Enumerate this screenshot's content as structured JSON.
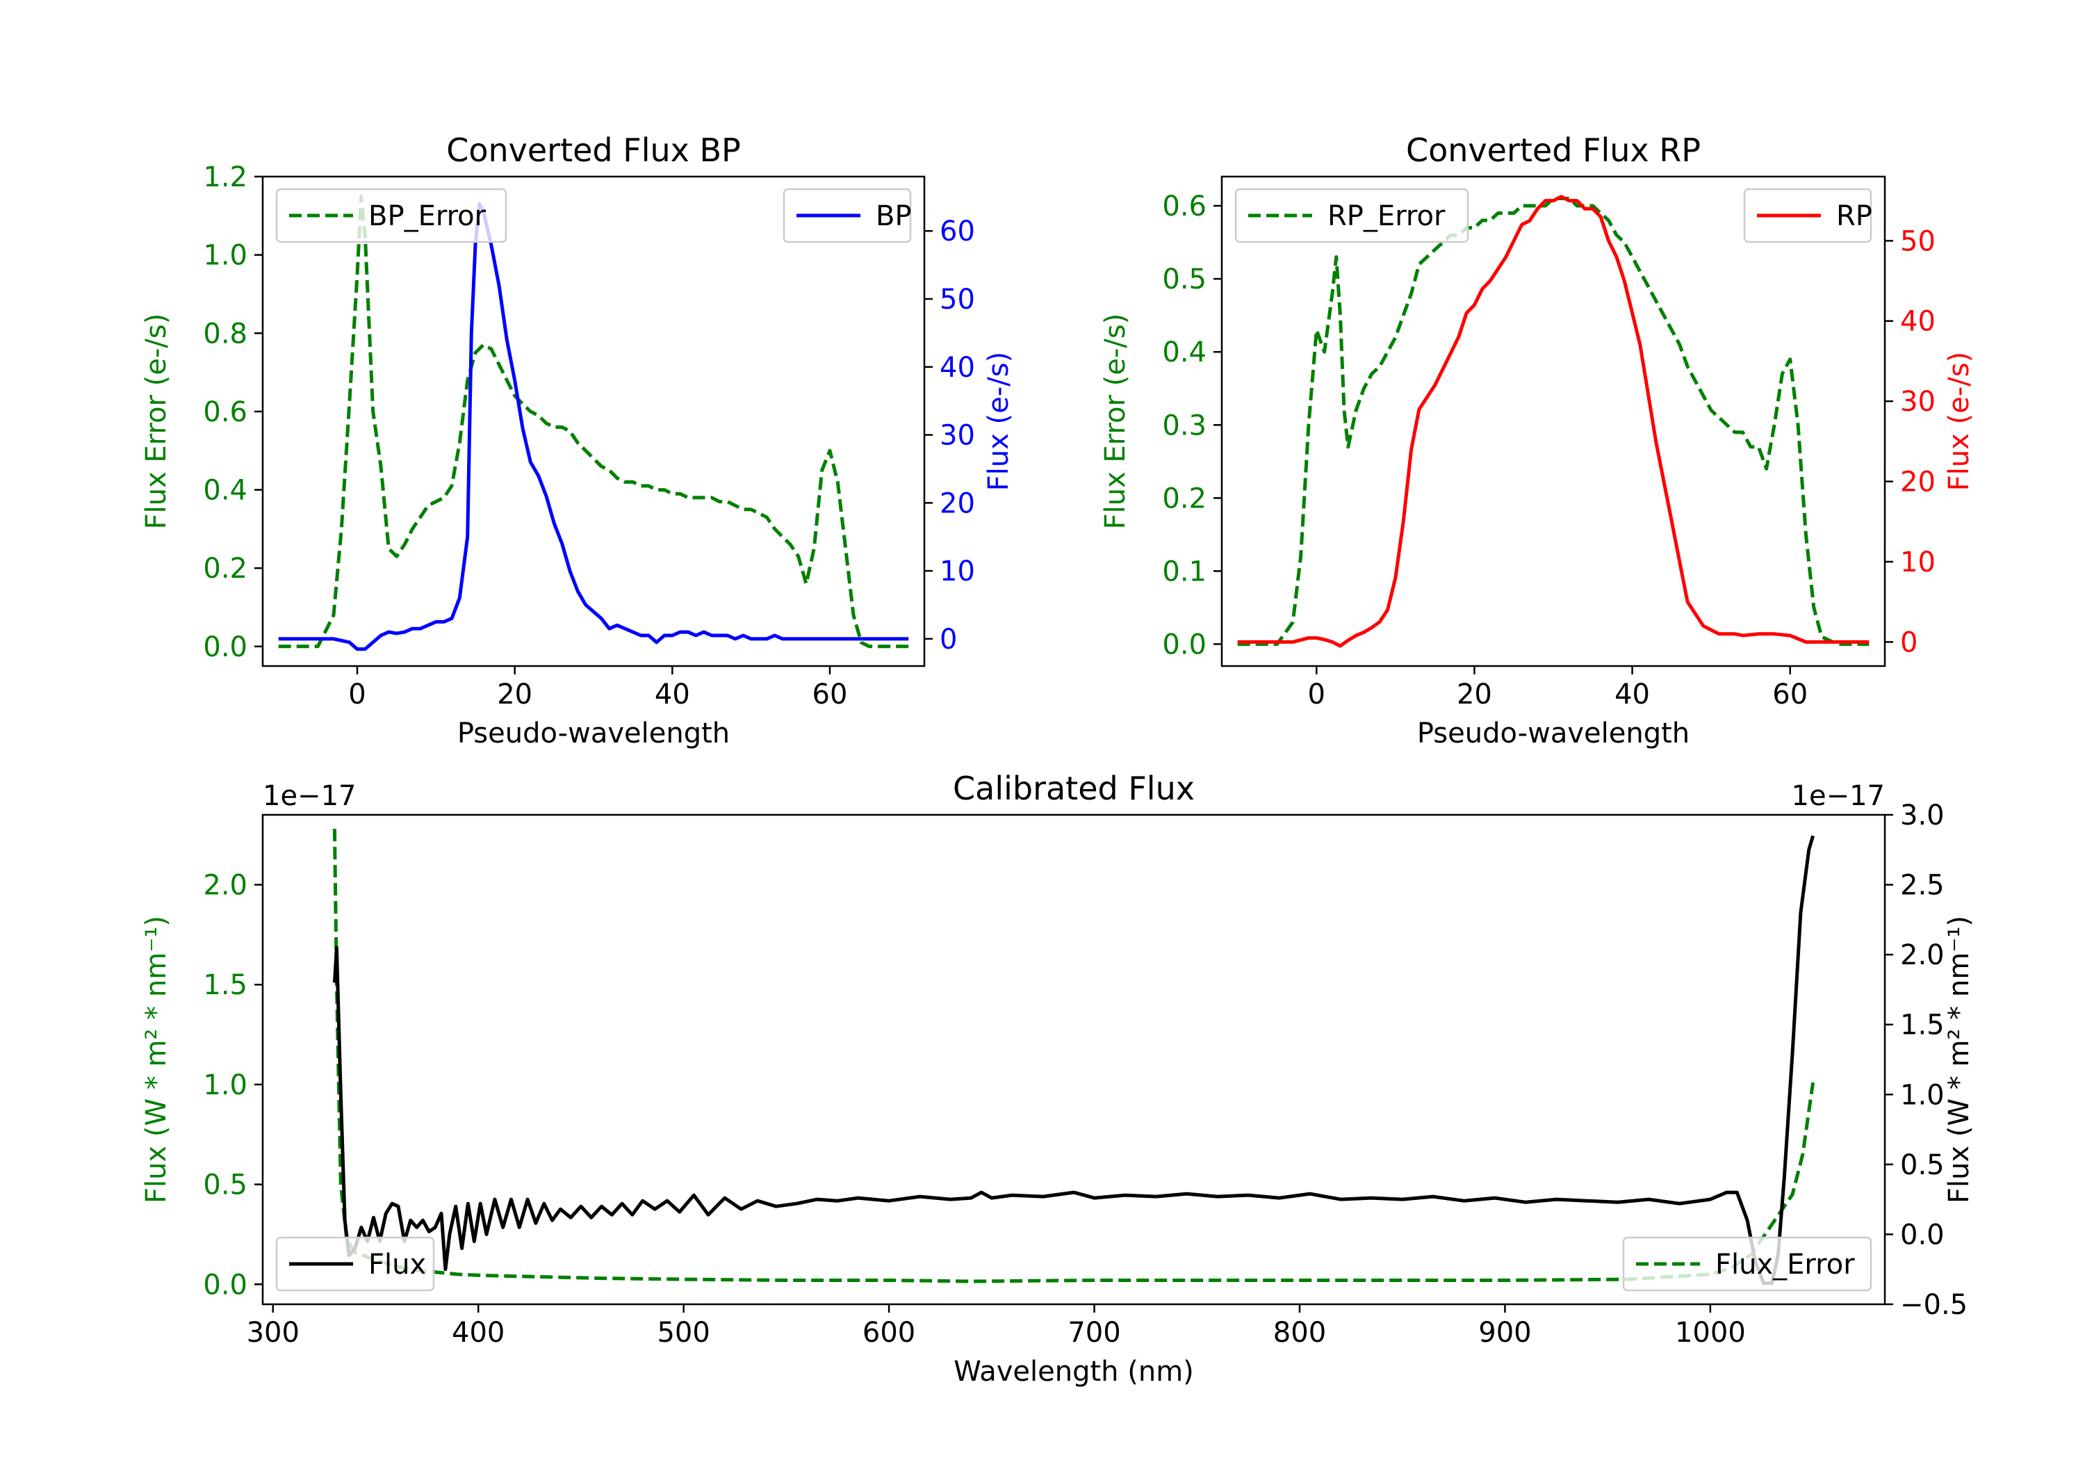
{
  "colors": {
    "green": "#008000",
    "blue": "#0000ff",
    "red": "#ff0000",
    "black": "#000000"
  },
  "chart_data": [
    {
      "type": "line",
      "title": "Converted Flux BP",
      "xlabel": "Pseudo-wavelength",
      "ylabel_left": "Flux Error (e-/s)",
      "ylabel_right": "Flux (e-/s)",
      "xlim": [
        -12,
        72
      ],
      "ylim_left": [
        -0.05,
        1.2
      ],
      "ylim_right": [
        -4,
        68
      ],
      "xticks": [
        0,
        20,
        40,
        60
      ],
      "yticks_left": [
        0.0,
        0.2,
        0.4,
        0.6,
        0.8,
        1.0,
        1.2
      ],
      "yticks_right": [
        0,
        10,
        20,
        30,
        40,
        50,
        60
      ],
      "xtick_labels": [
        "0",
        "20",
        "40",
        "60"
      ],
      "ytick_labels_left": [
        "0.0",
        "0.2",
        "0.4",
        "0.6",
        "0.8",
        "1.0",
        "1.2"
      ],
      "ytick_labels_right": [
        "0",
        "10",
        "20",
        "30",
        "40",
        "50",
        "60"
      ],
      "legend_left": "BP_Error",
      "legend_right": "BP",
      "series": [
        {
          "name": "BP_Error",
          "axis": "left",
          "style": "dashed",
          "color": "#008000",
          "x": [
            -10,
            -5,
            -3,
            -2,
            -1,
            0,
            0.5,
            1,
            2,
            3,
            4,
            5,
            6,
            7,
            8,
            9,
            10,
            11,
            12,
            13,
            14,
            15,
            16,
            17,
            18,
            19,
            20,
            21,
            22,
            23,
            24,
            25,
            26,
            27,
            28,
            29,
            30,
            31,
            32,
            33,
            34,
            35,
            36,
            37,
            38,
            39,
            40,
            41,
            42,
            43,
            44,
            45,
            46,
            47,
            48,
            49,
            50,
            51,
            52,
            53,
            54,
            55,
            56,
            57,
            58,
            59,
            60,
            61,
            62,
            63,
            64,
            65,
            66,
            67,
            68,
            69,
            70
          ],
          "y": [
            0.0,
            0.0,
            0.08,
            0.3,
            0.62,
            0.95,
            1.15,
            1.05,
            0.6,
            0.46,
            0.25,
            0.23,
            0.26,
            0.3,
            0.33,
            0.36,
            0.37,
            0.38,
            0.41,
            0.52,
            0.68,
            0.75,
            0.77,
            0.76,
            0.72,
            0.68,
            0.64,
            0.62,
            0.6,
            0.59,
            0.57,
            0.56,
            0.56,
            0.55,
            0.52,
            0.5,
            0.48,
            0.46,
            0.45,
            0.43,
            0.42,
            0.42,
            0.41,
            0.41,
            0.4,
            0.4,
            0.39,
            0.39,
            0.38,
            0.38,
            0.38,
            0.38,
            0.37,
            0.37,
            0.36,
            0.35,
            0.35,
            0.34,
            0.33,
            0.3,
            0.28,
            0.26,
            0.23,
            0.16,
            0.25,
            0.45,
            0.5,
            0.42,
            0.25,
            0.08,
            0.01,
            0.0,
            0.0,
            0.0,
            0.0,
            0.0,
            0.0
          ]
        },
        {
          "name": "BP",
          "axis": "right",
          "style": "solid",
          "color": "#0000ff",
          "x": [
            -10,
            -5,
            -3,
            -1,
            0,
            1,
            2,
            3,
            4,
            5,
            6,
            7,
            8,
            9,
            10,
            11,
            12,
            13,
            14,
            14.5,
            15,
            15.5,
            16,
            17,
            18,
            19,
            20,
            21,
            22,
            23,
            24,
            25,
            26,
            27,
            28,
            29,
            30,
            31,
            32,
            33,
            34,
            35,
            36,
            37,
            38,
            39,
            40,
            41,
            42,
            43,
            44,
            45,
            46,
            47,
            48,
            49,
            50,
            51,
            52,
            53,
            54,
            55,
            56,
            57,
            58,
            60,
            62,
            64,
            66,
            68,
            70
          ],
          "y": [
            0,
            0,
            0,
            -0.5,
            -1.5,
            -1.5,
            -0.5,
            0.5,
            1,
            0.8,
            1,
            1.5,
            1.5,
            2,
            2.5,
            2.5,
            3,
            6,
            15,
            45,
            58,
            64,
            63,
            58,
            52,
            44,
            38,
            31,
            26,
            24,
            21,
            17,
            14,
            10,
            7,
            5,
            4,
            3,
            1.5,
            2,
            1.5,
            1,
            0.5,
            0.5,
            -0.5,
            0.5,
            0.5,
            1,
            1,
            0.5,
            1,
            0.5,
            0.5,
            0.5,
            0,
            0.5,
            0,
            0,
            0,
            0.5,
            0,
            0,
            0,
            0,
            0,
            0,
            0,
            0,
            0,
            0,
            0
          ]
        }
      ]
    },
    {
      "type": "line",
      "title": "Converted Flux RP",
      "xlabel": "Pseudo-wavelength",
      "ylabel_left": "Flux Error (e-/s)",
      "ylabel_right": "Flux (e-/s)",
      "xlim": [
        -12,
        72
      ],
      "ylim_left": [
        -0.03,
        0.64
      ],
      "ylim_right": [
        -3,
        58
      ],
      "xticks": [
        0,
        20,
        40,
        60
      ],
      "yticks_left": [
        0.0,
        0.1,
        0.2,
        0.3,
        0.4,
        0.5,
        0.6
      ],
      "yticks_right": [
        0,
        10,
        20,
        30,
        40,
        50
      ],
      "xtick_labels": [
        "0",
        "20",
        "40",
        "60"
      ],
      "ytick_labels_left": [
        "0.0",
        "0.1",
        "0.2",
        "0.3",
        "0.4",
        "0.5",
        "0.6"
      ],
      "ytick_labels_right": [
        "0",
        "10",
        "20",
        "30",
        "40",
        "50"
      ],
      "legend_left": "RP_Error",
      "legend_right": "RP",
      "series": [
        {
          "name": "RP_Error",
          "axis": "left",
          "style": "dashed",
          "color": "#008000",
          "x": [
            -10,
            -5,
            -3,
            -2,
            -1,
            0,
            1,
            2,
            2.5,
            3,
            3.5,
            4,
            5,
            6,
            7,
            8,
            9,
            10,
            11,
            12,
            13,
            14,
            15,
            16,
            17,
            18,
            19,
            20,
            21,
            22,
            23,
            24,
            25,
            26,
            27,
            28,
            29,
            30,
            31,
            32,
            33,
            34,
            35,
            36,
            37,
            38,
            39,
            40,
            41,
            42,
            43,
            44,
            45,
            46,
            47,
            48,
            49,
            50,
            51,
            52,
            53,
            54,
            55,
            56,
            57,
            58,
            59,
            60,
            61,
            62,
            63,
            64,
            66,
            68,
            70
          ],
          "y": [
            0.0,
            0.0,
            0.03,
            0.12,
            0.3,
            0.43,
            0.4,
            0.48,
            0.53,
            0.45,
            0.32,
            0.27,
            0.32,
            0.35,
            0.37,
            0.38,
            0.4,
            0.42,
            0.45,
            0.48,
            0.52,
            0.53,
            0.54,
            0.55,
            0.56,
            0.56,
            0.57,
            0.57,
            0.58,
            0.58,
            0.59,
            0.59,
            0.59,
            0.6,
            0.6,
            0.6,
            0.6,
            0.61,
            0.61,
            0.61,
            0.6,
            0.6,
            0.6,
            0.59,
            0.58,
            0.56,
            0.55,
            0.53,
            0.51,
            0.49,
            0.47,
            0.45,
            0.43,
            0.41,
            0.38,
            0.36,
            0.34,
            0.32,
            0.31,
            0.3,
            0.29,
            0.29,
            0.27,
            0.27,
            0.24,
            0.3,
            0.37,
            0.39,
            0.3,
            0.15,
            0.05,
            0.01,
            0.0,
            0.0,
            0.0
          ]
        },
        {
          "name": "RP",
          "axis": "right",
          "style": "solid",
          "color": "#ff0000",
          "x": [
            -10,
            -5,
            -3,
            -1,
            0,
            1,
            2,
            3,
            4,
            5,
            6,
            7,
            8,
            9,
            10,
            11,
            12,
            13,
            14,
            15,
            16,
            17,
            18,
            19,
            20,
            21,
            22,
            23,
            24,
            25,
            26,
            27,
            28,
            29,
            30,
            31,
            32,
            33,
            34,
            35,
            36,
            37,
            38,
            39,
            40,
            41,
            42,
            43,
            44,
            45,
            46,
            47,
            48,
            49,
            50,
            51,
            52,
            53,
            54,
            56,
            58,
            60,
            62,
            64,
            66,
            68,
            70
          ],
          "y": [
            0,
            0,
            0,
            0.5,
            0.5,
            0.3,
            0,
            -0.5,
            0.2,
            0.8,
            1.2,
            1.8,
            2.5,
            4,
            8,
            15,
            24,
            29,
            30.5,
            32,
            34,
            36,
            38,
            41,
            42,
            44,
            45,
            46.5,
            48,
            50,
            52,
            52.5,
            54,
            55,
            55,
            55.5,
            55,
            55,
            54,
            54,
            53,
            50,
            48,
            45,
            41,
            37,
            31,
            25,
            20,
            15,
            10,
            5,
            3.5,
            2,
            1.5,
            1,
            1,
            1,
            0.8,
            1,
            1,
            0.8,
            0,
            0,
            0,
            0,
            0
          ]
        }
      ]
    },
    {
      "type": "line",
      "title": "Calibrated Flux",
      "xlabel": "Wavelength (nm)",
      "ylabel_left": "Flux (W * m² * nm⁻¹)",
      "ylabel_right": "Flux (W * m² * nm⁻¹)",
      "offset_left": "1e−17",
      "offset_right": "1e−17",
      "xlim": [
        295,
        1085
      ],
      "ylim_left": [
        -0.1,
        2.35
      ],
      "ylim_right": [
        -0.5,
        3.0
      ],
      "xticks": [
        300,
        400,
        500,
        600,
        700,
        800,
        900,
        1000
      ],
      "yticks_left": [
        0.0,
        0.5,
        1.0,
        1.5,
        2.0
      ],
      "yticks_right": [
        -0.5,
        0.0,
        0.5,
        1.0,
        1.5,
        2.0,
        2.5,
        3.0
      ],
      "xtick_labels": [
        "300",
        "400",
        "500",
        "600",
        "700",
        "800",
        "900",
        "1000"
      ],
      "ytick_labels_left": [
        "0.0",
        "0.5",
        "1.0",
        "1.5",
        "2.0"
      ],
      "ytick_labels_right": [
        "−0.5",
        "0.0",
        "0.5",
        "1.0",
        "1.5",
        "2.0",
        "2.5",
        "3.0"
      ],
      "legend_left": "Flux",
      "legend_right": "Flux_Error",
      "series": [
        {
          "name": "Flux_Error",
          "axis": "left",
          "style": "dashed",
          "color": "#008000",
          "x": [
            330,
            331,
            333,
            336,
            340,
            345,
            350,
            360,
            370,
            380,
            390,
            400,
            420,
            440,
            460,
            500,
            550,
            600,
            640,
            700,
            800,
            900,
            960,
            1000,
            1010,
            1020,
            1030,
            1040,
            1045,
            1050
          ],
          "y": [
            2.28,
            1.5,
            0.5,
            0.22,
            0.16,
            0.14,
            0.12,
            0.09,
            0.07,
            0.06,
            0.05,
            0.045,
            0.04,
            0.035,
            0.03,
            0.025,
            0.02,
            0.02,
            0.015,
            0.02,
            0.02,
            0.02,
            0.025,
            0.05,
            0.08,
            0.15,
            0.3,
            0.45,
            0.65,
            1.01
          ]
        },
        {
          "name": "Flux",
          "axis": "right",
          "style": "solid",
          "color": "#000000",
          "x": [
            330,
            331,
            333,
            335,
            337,
            340,
            343,
            346,
            349,
            352,
            355,
            358,
            361,
            364,
            367,
            370,
            373,
            376,
            379,
            382,
            384,
            386,
            389,
            392,
            395,
            398,
            401,
            404,
            408,
            412,
            416,
            420,
            424,
            428,
            432,
            436,
            440,
            445,
            450,
            455,
            460,
            465,
            470,
            475,
            480,
            486,
            492,
            498,
            505,
            512,
            520,
            528,
            536,
            545,
            555,
            565,
            575,
            585,
            600,
            615,
            630,
            640,
            645,
            650,
            660,
            675,
            690,
            700,
            715,
            730,
            745,
            760,
            775,
            790,
            805,
            820,
            835,
            850,
            865,
            880,
            895,
            910,
            925,
            940,
            955,
            970,
            985,
            1000,
            1008,
            1013,
            1018,
            1022,
            1026,
            1030,
            1033,
            1036,
            1040,
            1044,
            1048,
            1050
          ],
          "y": [
            1.8,
            2.05,
            1.0,
            0.1,
            -0.15,
            -0.1,
            0.05,
            -0.05,
            0.12,
            -0.05,
            0.15,
            0.22,
            0.2,
            -0.05,
            0.1,
            0.05,
            0.1,
            0.02,
            0.05,
            0.15,
            -0.25,
            0.0,
            0.2,
            -0.1,
            0.22,
            -0.05,
            0.22,
            0.0,
            0.25,
            0.05,
            0.25,
            0.05,
            0.25,
            0.08,
            0.22,
            0.1,
            0.18,
            0.12,
            0.2,
            0.12,
            0.2,
            0.14,
            0.22,
            0.14,
            0.24,
            0.18,
            0.24,
            0.16,
            0.28,
            0.14,
            0.26,
            0.18,
            0.24,
            0.2,
            0.22,
            0.25,
            0.24,
            0.26,
            0.24,
            0.27,
            0.25,
            0.26,
            0.3,
            0.26,
            0.28,
            0.27,
            0.3,
            0.26,
            0.28,
            0.27,
            0.29,
            0.27,
            0.28,
            0.26,
            0.29,
            0.25,
            0.26,
            0.25,
            0.27,
            0.24,
            0.26,
            0.23,
            0.25,
            0.24,
            0.23,
            0.25,
            0.22,
            0.25,
            0.3,
            0.3,
            0.1,
            -0.2,
            -0.35,
            -0.35,
            -0.15,
            0.4,
            1.3,
            2.3,
            2.75,
            2.85
          ]
        }
      ]
    }
  ]
}
